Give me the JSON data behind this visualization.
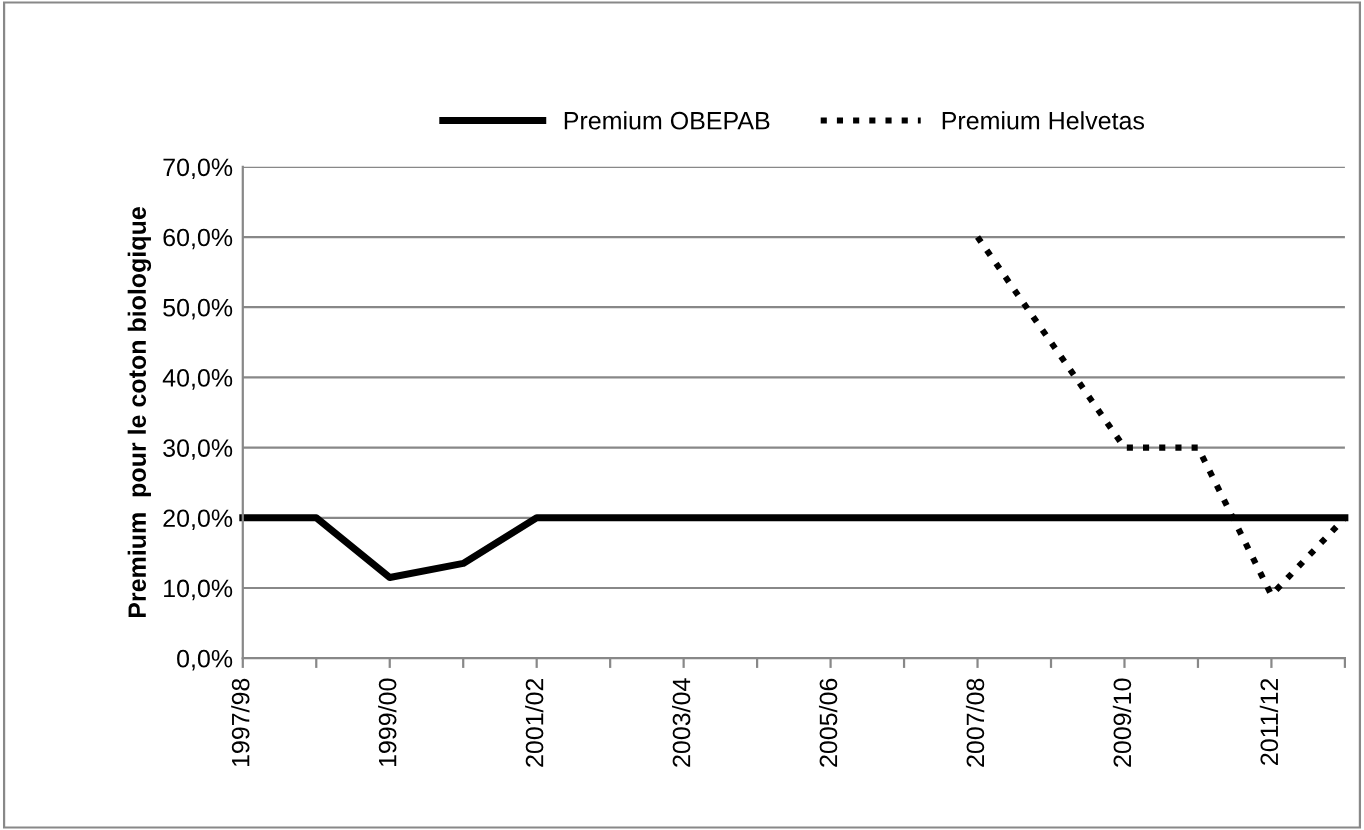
{
  "chart_data": {
    "type": "line",
    "ylabel": "Premium  pour le coton biologique",
    "categories": [
      "1997/98",
      null,
      "1999/00",
      null,
      "2001/02",
      null,
      "2003/04",
      null,
      "2005/06",
      null,
      "2007/08",
      null,
      "2009/10",
      null,
      "2011/12",
      null
    ],
    "series": [
      {
        "name": "Premium OBEPAB",
        "color": "#000000",
        "line_style": "solid",
        "values": [
          20,
          20,
          11.5,
          13.5,
          20,
          20,
          20,
          20,
          20,
          20,
          20,
          20,
          20,
          20,
          20,
          20
        ]
      },
      {
        "name": "Premium Helvetas",
        "color": "#000000",
        "line_style": "dotted",
        "values": [
          null,
          null,
          null,
          null,
          null,
          null,
          null,
          null,
          null,
          null,
          60,
          45,
          30,
          30,
          9,
          20
        ]
      }
    ],
    "ylim": [
      0,
      70
    ],
    "yticks": [
      {
        "value": 0,
        "label": "0,0%"
      },
      {
        "value": 10,
        "label": "10,0%"
      },
      {
        "value": 20,
        "label": "20,0%"
      },
      {
        "value": 30,
        "label": "30,0%"
      },
      {
        "value": 40,
        "label": "40,0%"
      },
      {
        "value": 50,
        "label": "50,0%"
      },
      {
        "value": 60,
        "label": "60,0%"
      },
      {
        "value": 70,
        "label": "70,0%"
      }
    ],
    "grid": "y",
    "legend": "top",
    "marker": "none"
  }
}
